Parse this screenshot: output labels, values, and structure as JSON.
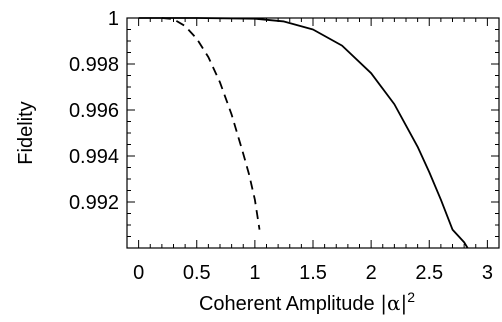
{
  "chart_data": {
    "type": "line",
    "xlabel": "Coherent Amplitude |α|²",
    "xlabel_parts": {
      "main": "Coherent Amplitude ",
      "var": "|α|",
      "exp": "2"
    },
    "ylabel": "Fidelity",
    "xlim": [
      -0.1,
      3.1
    ],
    "ylim": [
      0.99,
      1.0
    ],
    "grid": false,
    "x_ticks": [
      0,
      0.5,
      1,
      1.5,
      2,
      2.5,
      3
    ],
    "x_tick_labels": [
      "0",
      "0.5",
      "1",
      "1.5",
      "2",
      "2.5",
      "3"
    ],
    "y_ticks": [
      0.992,
      0.994,
      0.996,
      0.998,
      1.0
    ],
    "y_tick_labels": [
      "0.992",
      "0.994",
      "0.996",
      "0.998",
      "1"
    ],
    "series": [
      {
        "style": "solid",
        "color": "#000000",
        "x": [
          0,
          0.5,
          1.0,
          1.25,
          1.5,
          1.75,
          2.0,
          2.2,
          2.4,
          2.5,
          2.6,
          2.7,
          2.8,
          2.83
        ],
        "y": [
          1.0,
          1.0,
          0.99997,
          0.99985,
          0.9995,
          0.9988,
          0.9976,
          0.99625,
          0.9944,
          0.9933,
          0.9921,
          0.9908,
          0.99025,
          0.99
        ]
      },
      {
        "style": "dashed",
        "color": "#000000",
        "x": [
          0.2,
          0.3,
          0.4,
          0.5,
          0.6,
          0.7,
          0.8,
          0.9,
          0.95,
          1.0,
          1.04
        ],
        "y": [
          1.0,
          0.99995,
          0.99965,
          0.9991,
          0.9983,
          0.9972,
          0.9958,
          0.9941,
          0.9932,
          0.9921,
          0.9908
        ]
      }
    ]
  }
}
